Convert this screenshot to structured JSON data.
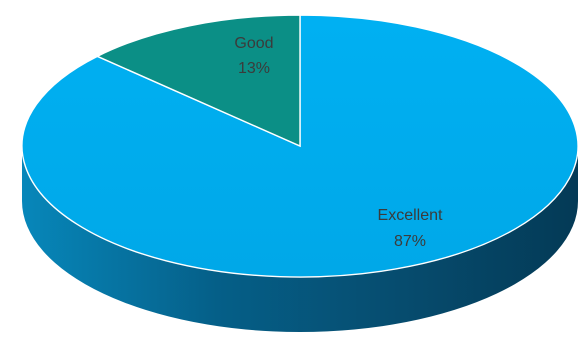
{
  "chart_data": {
    "type": "pie",
    "title": "",
    "legend": "none",
    "slices": [
      {
        "category": "Excellent",
        "value": 87,
        "percent_label": "87%",
        "color": "#00adef",
        "side_color": "#075f8d"
      },
      {
        "category": "Good",
        "value": 13,
        "percent_label": "13%",
        "color": "#0b8f86",
        "side_color": "#07514e"
      }
    ]
  }
}
